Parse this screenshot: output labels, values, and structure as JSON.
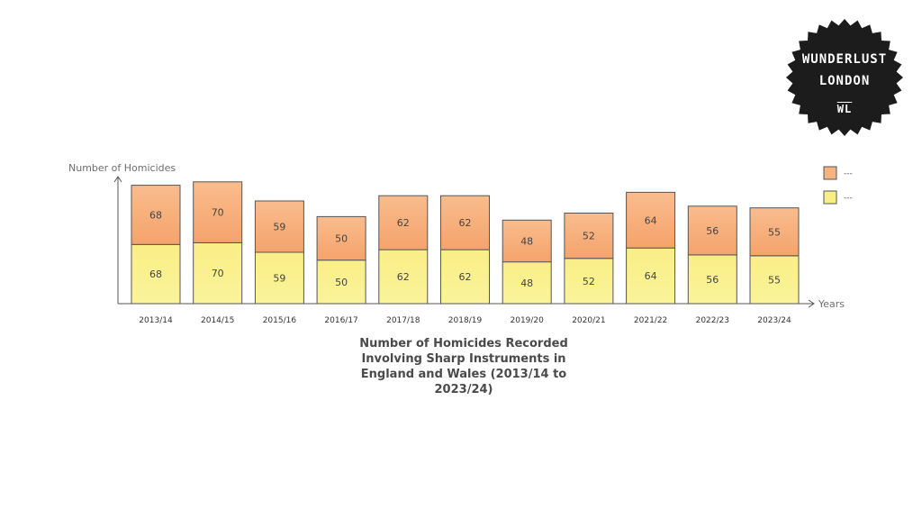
{
  "logo": {
    "line1": "WUNDERLUST",
    "line2": "LONDON",
    "line3": "WL"
  },
  "chart_data": {
    "type": "bar",
    "stacked": true,
    "title": "Number of Homicides Recorded Involving Sharp Instruments in England and Wales (2013/14 to 2023/24)",
    "xlabel": "Years",
    "ylabel": "Number of Homicides",
    "categories": [
      "2013/14",
      "2014/15",
      "2015/16",
      "2016/17",
      "2017/18",
      "2018/19",
      "2019/20",
      "2020/21",
      "2021/22",
      "2022/23",
      "2023/24"
    ],
    "series": [
      {
        "name": "---",
        "color": "#f9ee86",
        "values": [
          68,
          70,
          59,
          50,
          62,
          62,
          48,
          52,
          64,
          56,
          55
        ]
      },
      {
        "name": "---",
        "color": "#f8b27f",
        "values": [
          68,
          70,
          59,
          50,
          62,
          62,
          48,
          52,
          64,
          56,
          55
        ]
      }
    ],
    "legend_position": "top-right",
    "grid": false
  }
}
